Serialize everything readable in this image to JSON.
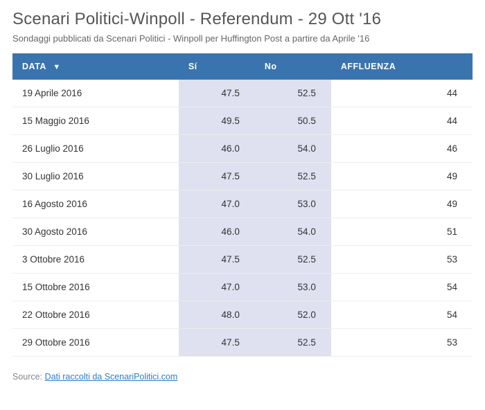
{
  "title": "Scenari Politici-Winpoll - Referendum - 29 Ott '16",
  "subtitle": "Sondaggi pubblicati da Scenari Politici - Winpoll per Huffington Post a partire da Aprile '16",
  "table": {
    "type": "table",
    "header_bg": "#3a74af",
    "header_text_color": "#ffffff",
    "cell_highlight_bg": "#dfe0f0",
    "row_border_color": "#eeeeee",
    "sort_indicator": "▼",
    "columns": [
      {
        "key": "data",
        "label": "DATA",
        "align": "left",
        "sorted": true
      },
      {
        "key": "si",
        "label": "Sí",
        "align": "right",
        "highlight": true
      },
      {
        "key": "no",
        "label": "No",
        "align": "right",
        "highlight": true
      },
      {
        "key": "affluenza",
        "label": "AFFLUENZA",
        "align": "right"
      }
    ],
    "rows": [
      {
        "data": "19 Aprile 2016",
        "si": "47.5",
        "no": "52.5",
        "affluenza": "44"
      },
      {
        "data": "15 Maggio 2016",
        "si": "49.5",
        "no": "50.5",
        "affluenza": "44"
      },
      {
        "data": "26 Luglio 2016",
        "si": "46.0",
        "no": "54.0",
        "affluenza": "46"
      },
      {
        "data": "30 Luglio 2016",
        "si": "47.5",
        "no": "52.5",
        "affluenza": "49"
      },
      {
        "data": "16 Agosto 2016",
        "si": "47.0",
        "no": "53.0",
        "affluenza": "49"
      },
      {
        "data": "30 Agosto 2016",
        "si": "46.0",
        "no": "54.0",
        "affluenza": "51"
      },
      {
        "data": "3 Ottobre 2016",
        "si": "47.5",
        "no": "52.5",
        "affluenza": "53"
      },
      {
        "data": "15 Ottobre 2016",
        "si": "47.0",
        "no": "53.0",
        "affluenza": "54"
      },
      {
        "data": "22 Ottobre 2016",
        "si": "48.0",
        "no": "52.0",
        "affluenza": "54"
      },
      {
        "data": "29 Ottobre 2016",
        "si": "47.5",
        "no": "52.5",
        "affluenza": "53"
      }
    ]
  },
  "source": {
    "label": "Source: ",
    "link_text": "Dati raccolti da ScenariPolitici.com"
  }
}
